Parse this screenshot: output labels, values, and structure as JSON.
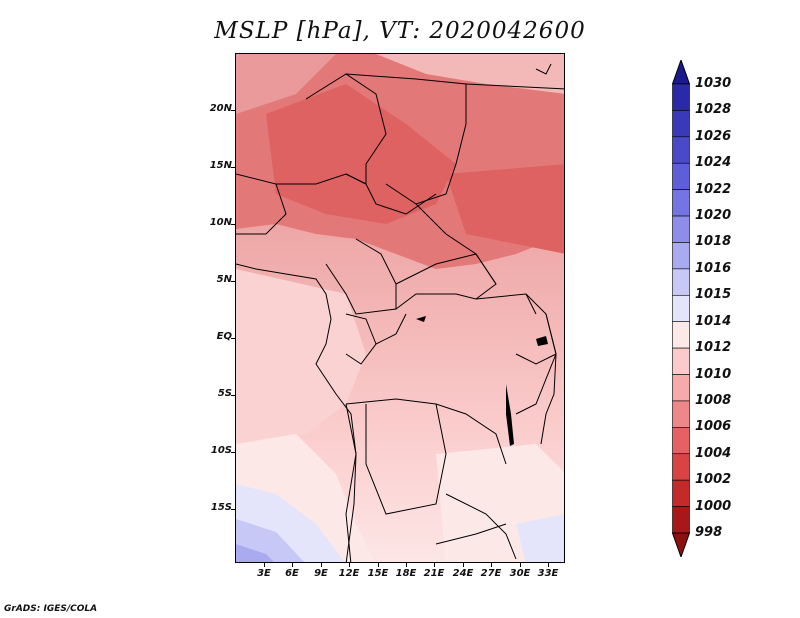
{
  "title": "MSLP [hPa], VT: 2020042600",
  "footer": "GrADS: IGES/COLA",
  "map": {
    "lat_labels": [
      "20N",
      "15N",
      "10N",
      "5N",
      "EQ",
      "5S",
      "10S",
      "15S"
    ],
    "lon_labels": [
      "3E",
      "6E",
      "9E",
      "12E",
      "15E",
      "18E",
      "21E",
      "24E",
      "27E",
      "30E",
      "33E"
    ],
    "field": "mean sea level pressure"
  },
  "colorbar": {
    "levels": [
      "1030",
      "1028",
      "1026",
      "1024",
      "1022",
      "1020",
      "1018",
      "1016",
      "1015",
      "1014",
      "1012",
      "1010",
      "1008",
      "1006",
      "1004",
      "1002",
      "1000",
      "998"
    ],
    "colors": [
      "#1a1a8c",
      "#2a2aa8",
      "#3a3ab8",
      "#4a4ac8",
      "#5e5ed8",
      "#7474e2",
      "#8e8eea",
      "#aaaaf0",
      "#c8c8f6",
      "#e4e4fb",
      "#fde8e8",
      "#fbcaca",
      "#f6aaaa",
      "#ee8888",
      "#e46262",
      "#d84444",
      "#c42a2a",
      "#a81818",
      "#8c1010"
    ]
  }
}
